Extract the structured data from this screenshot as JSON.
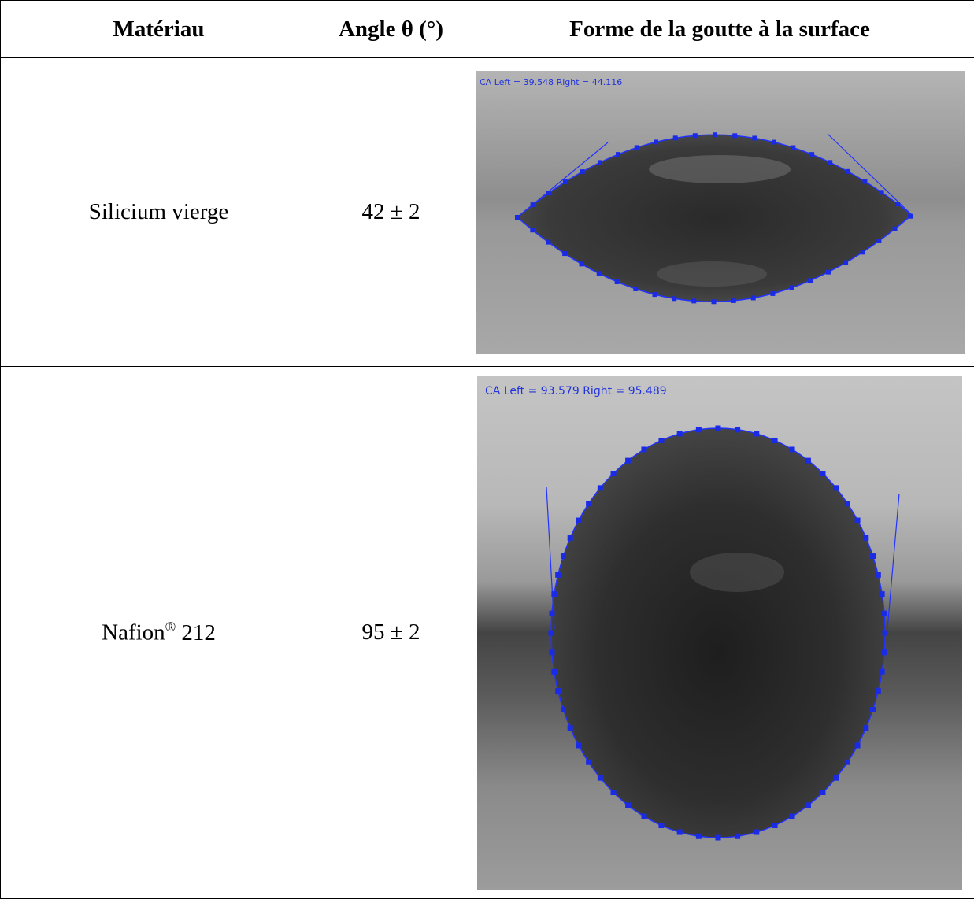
{
  "table": {
    "header": [
      "Matériau",
      "Angle θ (°)",
      "Forme de la goutte à la surface"
    ],
    "rows": [
      {
        "material": [
          "Silicium vierge"
        ],
        "angle": "42 ± 2",
        "image_caption": "CA Left = 39.548 Right = 44.116"
      },
      {
        "material": [
          "Nafion",
          "®",
          "212"
        ],
        "angle": "95 ± 2",
        "image_caption": "CA Left = 93.579 Right = 95.489"
      }
    ]
  }
}
